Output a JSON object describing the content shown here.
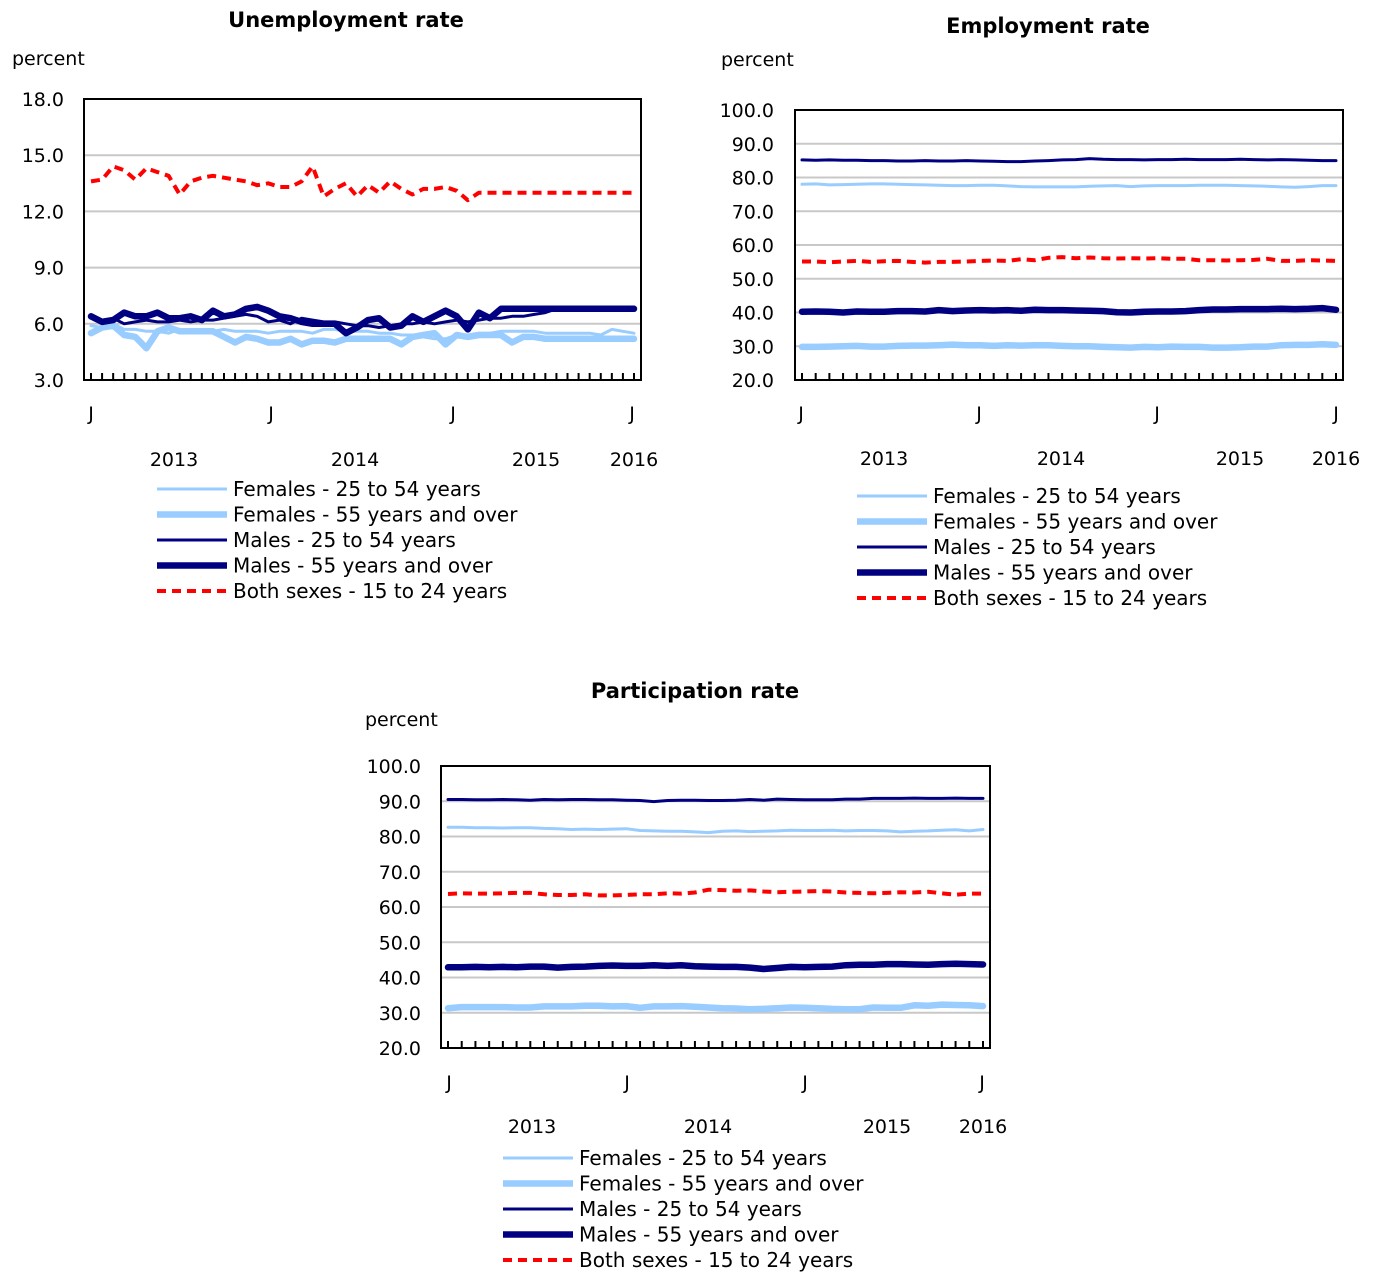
{
  "chart_data": [
    {
      "type": "line",
      "title": "Unemployment rate",
      "ylabel": "percent",
      "ylim": [
        3.0,
        18.0
      ],
      "yticks": [
        "3.0",
        "6.0",
        "9.0",
        "12.0",
        "15.0",
        "18.0"
      ],
      "x_month_labels": [
        "J",
        "J",
        "J",
        "J"
      ],
      "x_year_labels": [
        "2013",
        "2014",
        "2015",
        "2016"
      ],
      "grid": "horizontal",
      "legend_position": "bottom",
      "series": [
        {
          "name": "Females - 25 to 54 years",
          "color": "#99ccff",
          "style": "thin",
          "values": [
            5.9,
            5.8,
            6.0,
            5.7,
            5.7,
            5.6,
            5.6,
            5.5,
            5.7,
            5.6,
            5.6,
            5.6,
            5.7,
            5.6,
            5.6,
            5.6,
            5.5,
            5.6,
            5.6,
            5.6,
            5.5,
            5.7,
            5.7,
            5.6,
            5.6,
            5.6,
            5.5,
            5.5,
            5.4,
            5.4,
            5.3,
            5.2,
            5.2,
            5.4,
            5.4,
            5.5,
            5.5,
            5.6,
            5.6,
            5.6,
            5.6,
            5.5,
            5.5,
            5.5,
            5.5,
            5.5,
            5.4,
            5.7,
            5.6,
            5.5
          ]
        },
        {
          "name": "Females - 55 years and over",
          "color": "#99ccff",
          "style": "thick",
          "values": [
            5.5,
            5.8,
            5.9,
            5.4,
            5.3,
            4.7,
            5.6,
            5.8,
            5.6,
            5.6,
            5.6,
            5.6,
            5.3,
            5.0,
            5.3,
            5.2,
            5.0,
            5.0,
            5.2,
            4.9,
            5.1,
            5.1,
            5.0,
            5.2,
            5.2,
            5.2,
            5.2,
            5.2,
            4.9,
            5.3,
            5.4,
            5.5,
            4.9,
            5.4,
            5.3,
            5.4,
            5.4,
            5.4,
            5.0,
            5.3,
            5.3,
            5.2,
            5.2,
            5.2,
            5.2,
            5.2,
            5.2,
            5.2,
            5.2,
            5.2
          ]
        },
        {
          "name": "Males - 25 to 54 years",
          "color": "#000080",
          "style": "thin",
          "values": [
            6.4,
            6.2,
            6.3,
            6.0,
            6.1,
            6.2,
            6.1,
            6.1,
            6.2,
            6.1,
            6.2,
            6.2,
            6.3,
            6.4,
            6.5,
            6.4,
            6.1,
            6.2,
            6.0,
            6.3,
            6.2,
            6.1,
            6.1,
            6.0,
            5.9,
            5.9,
            5.8,
            5.9,
            6.0,
            6.0,
            6.1,
            6.0,
            6.1,
            6.2,
            6.1,
            6.2,
            6.3,
            6.3,
            6.4,
            6.4,
            6.5,
            6.6,
            6.8,
            6.8,
            6.8,
            6.8,
            6.8,
            6.8,
            6.8,
            6.8
          ]
        },
        {
          "name": "Males - 55 years and over",
          "color": "#000080",
          "style": "thick",
          "values": [
            6.4,
            6.1,
            6.2,
            6.6,
            6.4,
            6.4,
            6.6,
            6.3,
            6.3,
            6.4,
            6.2,
            6.7,
            6.4,
            6.5,
            6.8,
            6.9,
            6.7,
            6.4,
            6.3,
            6.1,
            6.0,
            6.0,
            6.0,
            5.5,
            5.8,
            6.2,
            6.3,
            5.8,
            5.9,
            6.4,
            6.1,
            6.4,
            6.7,
            6.4,
            5.7,
            6.6,
            6.3,
            6.8,
            6.8,
            6.8,
            6.8,
            6.8,
            6.8,
            6.8,
            6.8,
            6.8,
            6.8,
            6.8,
            6.8,
            6.8
          ]
        },
        {
          "name": "Both sexes - 15 to 24 years",
          "color": "#ff0000",
          "style": "dashed",
          "values": [
            13.6,
            13.7,
            14.4,
            14.2,
            13.7,
            14.3,
            14.1,
            13.9,
            12.9,
            13.6,
            13.8,
            13.9,
            13.8,
            13.7,
            13.6,
            13.4,
            13.5,
            13.3,
            13.3,
            13.6,
            14.4,
            12.8,
            13.2,
            13.5,
            12.8,
            13.4,
            13.0,
            13.6,
            13.2,
            12.9,
            13.2,
            13.2,
            13.3,
            13.1,
            12.6,
            13.0,
            13.0,
            13.0,
            13.0,
            13.0,
            13.0,
            13.0,
            13.0,
            13.0,
            13.0,
            13.0,
            13.0,
            13.0,
            13.0,
            13.0
          ]
        }
      ]
    },
    {
      "type": "line",
      "title": "Employment rate",
      "ylabel": "percent",
      "ylim": [
        20.0,
        100.0
      ],
      "yticks": [
        "20.0",
        "30.0",
        "40.0",
        "50.0",
        "60.0",
        "70.0",
        "80.0",
        "90.0",
        "100.0"
      ],
      "x_month_labels": [
        "J",
        "J",
        "J",
        "J"
      ],
      "x_year_labels": [
        "2013",
        "2014",
        "2015",
        "2016"
      ],
      "grid": "horizontal",
      "legend_position": "bottom",
      "series": [
        {
          "name": "Females - 25 to 54 years",
          "color": "#99ccff",
          "style": "thin",
          "values": [
            78.0,
            78.1,
            77.8,
            77.9,
            78.0,
            78.1,
            78.1,
            78.0,
            77.9,
            77.8,
            77.7,
            77.6,
            77.6,
            77.7,
            77.7,
            77.5,
            77.3,
            77.2,
            77.2,
            77.2,
            77.2,
            77.4,
            77.5,
            77.6,
            77.3,
            77.5,
            77.6,
            77.6,
            77.6,
            77.7,
            77.7,
            77.7,
            77.6,
            77.5,
            77.4,
            77.2,
            77.1,
            77.3,
            77.6,
            77.6
          ]
        },
        {
          "name": "Females - 55 years and over",
          "color": "#99ccff",
          "style": "thick",
          "values": [
            29.8,
            29.8,
            29.9,
            30.0,
            30.1,
            29.9,
            29.9,
            30.1,
            30.2,
            30.2,
            30.3,
            30.5,
            30.3,
            30.3,
            30.1,
            30.3,
            30.2,
            30.3,
            30.3,
            30.1,
            30.0,
            30.0,
            29.8,
            29.7,
            29.6,
            29.8,
            29.7,
            29.9,
            29.8,
            29.8,
            29.6,
            29.6,
            29.7,
            29.9,
            29.9,
            30.3,
            30.4,
            30.4,
            30.6,
            30.4
          ]
        },
        {
          "name": "Males - 25 to 54 years",
          "color": "#000080",
          "style": "thin",
          "values": [
            85.2,
            85.1,
            85.2,
            85.1,
            85.1,
            85.0,
            85.0,
            84.9,
            84.9,
            85.0,
            84.9,
            84.9,
            85.0,
            84.9,
            84.8,
            84.7,
            84.7,
            84.9,
            85.0,
            85.2,
            85.3,
            85.6,
            85.4,
            85.3,
            85.3,
            85.2,
            85.3,
            85.3,
            85.4,
            85.3,
            85.3,
            85.3,
            85.4,
            85.3,
            85.2,
            85.3,
            85.2,
            85.1,
            85.0,
            85.0
          ]
        },
        {
          "name": "Males - 55 years and over",
          "color": "#000080",
          "style": "thick",
          "values": [
            40.2,
            40.3,
            40.2,
            40.0,
            40.3,
            40.2,
            40.2,
            40.4,
            40.4,
            40.3,
            40.7,
            40.4,
            40.6,
            40.7,
            40.6,
            40.7,
            40.5,
            40.8,
            40.7,
            40.7,
            40.6,
            40.5,
            40.4,
            40.1,
            40.0,
            40.2,
            40.3,
            40.3,
            40.4,
            40.7,
            40.9,
            40.9,
            41.0,
            41.0,
            41.0,
            41.1,
            41.0,
            41.1,
            41.3,
            40.8
          ]
        },
        {
          "name": "Both sexes - 15 to 24 years",
          "color": "#ff0000",
          "style": "dashed",
          "values": [
            55.1,
            55.1,
            54.9,
            55.1,
            55.3,
            55.0,
            55.2,
            55.3,
            55.0,
            54.8,
            55.0,
            55.0,
            55.1,
            55.3,
            55.4,
            55.3,
            55.8,
            55.5,
            56.2,
            56.4,
            56.1,
            56.3,
            56.1,
            56.0,
            56.1,
            56.0,
            56.1,
            55.9,
            55.9,
            55.5,
            55.5,
            55.4,
            55.5,
            55.6,
            55.9,
            55.3,
            55.3,
            55.5,
            55.4,
            55.3
          ]
        }
      ]
    },
    {
      "type": "line",
      "title": "Participation rate",
      "ylabel": "percent",
      "ylim": [
        20.0,
        100.0
      ],
      "yticks": [
        "20.0",
        "30.0",
        "40.0",
        "50.0",
        "60.0",
        "70.0",
        "80.0",
        "90.0",
        "100.0"
      ],
      "x_month_labels": [
        "J",
        "J",
        "J",
        "J"
      ],
      "x_year_labels": [
        "2013",
        "2014",
        "2015",
        "2016"
      ],
      "grid": "horizontal",
      "legend_position": "bottom",
      "series": [
        {
          "name": "Females - 25 to 54 years",
          "color": "#99ccff",
          "style": "thin",
          "values": [
            82.6,
            82.6,
            82.5,
            82.5,
            82.4,
            82.5,
            82.5,
            82.3,
            82.2,
            82.0,
            82.1,
            82.0,
            82.1,
            82.2,
            81.7,
            81.6,
            81.5,
            81.5,
            81.3,
            81.1,
            81.5,
            81.6,
            81.4,
            81.5,
            81.6,
            81.8,
            81.7,
            81.7,
            81.8,
            81.6,
            81.7,
            81.7,
            81.6,
            81.3,
            81.5,
            81.6,
            81.8,
            81.9,
            81.6,
            82.0
          ]
        },
        {
          "name": "Females - 55 years and over",
          "color": "#99ccff",
          "style": "thick",
          "values": [
            31.3,
            31.6,
            31.6,
            31.6,
            31.6,
            31.5,
            31.5,
            31.8,
            31.8,
            31.8,
            32.0,
            32.0,
            31.8,
            31.9,
            31.4,
            31.8,
            31.8,
            31.9,
            31.7,
            31.5,
            31.3,
            31.2,
            31.0,
            31.1,
            31.3,
            31.5,
            31.4,
            31.3,
            31.1,
            31.0,
            31.0,
            31.5,
            31.4,
            31.4,
            32.1,
            32.0,
            32.3,
            32.2,
            32.1,
            31.9
          ]
        },
        {
          "name": "Males - 25 to 54 years",
          "color": "#000080",
          "style": "thin",
          "values": [
            90.5,
            90.5,
            90.4,
            90.4,
            90.5,
            90.4,
            90.3,
            90.5,
            90.4,
            90.5,
            90.5,
            90.4,
            90.4,
            90.3,
            90.2,
            89.9,
            90.2,
            90.3,
            90.3,
            90.2,
            90.2,
            90.3,
            90.5,
            90.3,
            90.6,
            90.5,
            90.4,
            90.4,
            90.4,
            90.6,
            90.6,
            90.8,
            90.8,
            90.8,
            90.9,
            90.8,
            90.8,
            90.9,
            90.8,
            90.8
          ]
        },
        {
          "name": "Males - 55 years and over",
          "color": "#000080",
          "style": "thick",
          "values": [
            42.9,
            42.9,
            43.0,
            42.9,
            43.0,
            42.9,
            43.1,
            43.1,
            42.8,
            43.0,
            43.1,
            43.3,
            43.4,
            43.3,
            43.3,
            43.5,
            43.3,
            43.5,
            43.2,
            43.1,
            43.0,
            43.0,
            42.8,
            42.4,
            42.7,
            43.0,
            42.9,
            43.0,
            43.1,
            43.5,
            43.6,
            43.6,
            43.8,
            43.8,
            43.7,
            43.6,
            43.8,
            43.9,
            43.8,
            43.7
          ]
        },
        {
          "name": "Both sexes - 15 to 24 years",
          "color": "#ff0000",
          "style": "dashed",
          "values": [
            63.7,
            63.9,
            63.8,
            63.8,
            63.9,
            64.0,
            64.0,
            63.6,
            63.4,
            63.4,
            63.6,
            63.3,
            63.3,
            63.4,
            63.6,
            63.6,
            63.9,
            63.8,
            64.1,
            64.9,
            64.8,
            64.6,
            64.7,
            64.4,
            64.2,
            64.3,
            64.4,
            64.5,
            64.4,
            64.1,
            64.0,
            63.9,
            64.0,
            64.2,
            64.1,
            64.3,
            63.9,
            63.5,
            63.8,
            63.8
          ]
        }
      ]
    }
  ]
}
